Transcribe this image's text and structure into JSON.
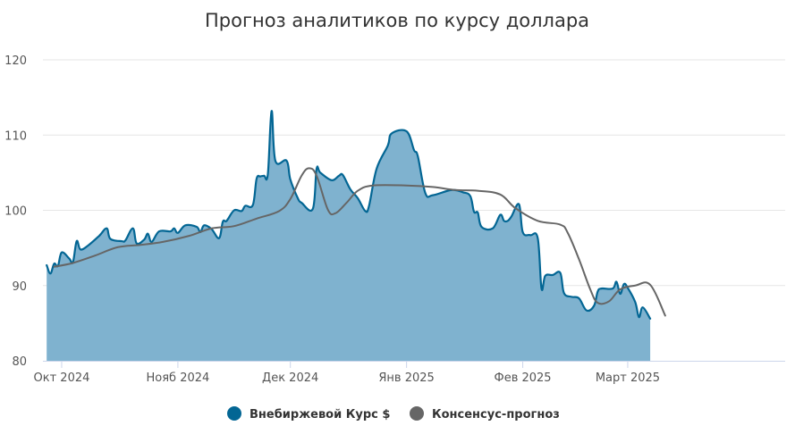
{
  "chart_data": {
    "type": "area",
    "title": "Прогноз аналитиков по курсу доллара",
    "xlabel": "",
    "ylabel": "",
    "x_range": [
      "2024-09-26",
      "2025-04-12"
    ],
    "ylim": [
      80,
      120
    ],
    "yticks": [
      80,
      90,
      100,
      110,
      120
    ],
    "xticks": [
      {
        "date": "2024-10-01",
        "label": "Окт 2024"
      },
      {
        "date": "2024-11-01",
        "label": "Нояб 2024"
      },
      {
        "date": "2024-12-01",
        "label": "Дек 2024"
      },
      {
        "date": "2025-01-01",
        "label": "Янв 2025"
      },
      {
        "date": "2025-02-01",
        "label": "Фев 2025"
      },
      {
        "date": "2025-03-01",
        "label": "Март 2025"
      }
    ],
    "grid": "horizontal",
    "legend_position": "bottom-center",
    "series": [
      {
        "name": "Внебиржевой Курс $",
        "kind": "area",
        "color": "#036694",
        "fill": "#7fb2cf",
        "points": [
          [
            "2024-09-27",
            92.7
          ],
          [
            "2024-09-28",
            91.6
          ],
          [
            "2024-09-29",
            92.9
          ],
          [
            "2024-09-30",
            92.6
          ],
          [
            "2024-10-01",
            94.4
          ],
          [
            "2024-10-03",
            93.6
          ],
          [
            "2024-10-04",
            93.1
          ],
          [
            "2024-10-05",
            95.9
          ],
          [
            "2024-10-06",
            94.8
          ],
          [
            "2024-10-08",
            95.3
          ],
          [
            "2024-10-11",
            96.6
          ],
          [
            "2024-10-13",
            97.6
          ],
          [
            "2024-10-14",
            96.2
          ],
          [
            "2024-10-17",
            95.9
          ],
          [
            "2024-10-18",
            96.0
          ],
          [
            "2024-10-20",
            97.6
          ],
          [
            "2024-10-21",
            95.6
          ],
          [
            "2024-10-23",
            96.1
          ],
          [
            "2024-10-24",
            96.9
          ],
          [
            "2024-10-25",
            95.8
          ],
          [
            "2024-10-27",
            97.2
          ],
          [
            "2024-10-30",
            97.2
          ],
          [
            "2024-10-31",
            97.6
          ],
          [
            "2024-11-01",
            97.0
          ],
          [
            "2024-11-03",
            98.0
          ],
          [
            "2024-11-06",
            97.8
          ],
          [
            "2024-11-07",
            97.1
          ],
          [
            "2024-11-08",
            98.0
          ],
          [
            "2024-11-10",
            97.5
          ],
          [
            "2024-11-12",
            96.3
          ],
          [
            "2024-11-13",
            98.5
          ],
          [
            "2024-11-14",
            98.6
          ],
          [
            "2024-11-16",
            100.0
          ],
          [
            "2024-11-18",
            99.9
          ],
          [
            "2024-11-19",
            100.6
          ],
          [
            "2024-11-21",
            100.7
          ],
          [
            "2024-11-22",
            104.2
          ],
          [
            "2024-11-23",
            104.5
          ],
          [
            "2024-11-24",
            104.6
          ],
          [
            "2024-11-25",
            104.8
          ],
          [
            "2024-11-26",
            113.2
          ],
          [
            "2024-11-27",
            106.6
          ],
          [
            "2024-11-30",
            106.6
          ],
          [
            "2024-12-01",
            104.1
          ],
          [
            "2024-12-03",
            101.6
          ],
          [
            "2024-12-04",
            101.0
          ],
          [
            "2024-12-07",
            100.2
          ],
          [
            "2024-12-08",
            105.5
          ],
          [
            "2024-12-09",
            105.0
          ],
          [
            "2024-12-12",
            104.0
          ],
          [
            "2024-12-14",
            104.6
          ],
          [
            "2024-12-15",
            104.7
          ],
          [
            "2024-12-17",
            102.8
          ],
          [
            "2024-12-19",
            101.6
          ],
          [
            "2024-12-21",
            99.9
          ],
          [
            "2024-12-22",
            100.6
          ],
          [
            "2024-12-24",
            105.5
          ],
          [
            "2024-12-27",
            108.6
          ],
          [
            "2024-12-28",
            110.2
          ],
          [
            "2025-01-01",
            110.5
          ],
          [
            "2025-01-03",
            108.0
          ],
          [
            "2025-01-04",
            107.2
          ],
          [
            "2025-01-06",
            102.3
          ],
          [
            "2025-01-08",
            102.0
          ],
          [
            "2025-01-13",
            102.7
          ],
          [
            "2025-01-16",
            102.4
          ],
          [
            "2025-01-18",
            101.9
          ],
          [
            "2025-01-19",
            99.8
          ],
          [
            "2025-01-20",
            99.7
          ],
          [
            "2025-01-21",
            97.8
          ],
          [
            "2025-01-24",
            97.6
          ],
          [
            "2025-01-26",
            99.4
          ],
          [
            "2025-01-27",
            98.6
          ],
          [
            "2025-01-28",
            98.6
          ],
          [
            "2025-01-29",
            99.2
          ],
          [
            "2025-01-31",
            100.8
          ],
          [
            "2025-02-01",
            97.1
          ],
          [
            "2025-02-03",
            96.7
          ],
          [
            "2025-02-05",
            96.3
          ],
          [
            "2025-02-06",
            89.6
          ],
          [
            "2025-02-07",
            91.3
          ],
          [
            "2025-02-09",
            91.4
          ],
          [
            "2025-02-11",
            91.7
          ],
          [
            "2025-02-12",
            89.0
          ],
          [
            "2025-02-14",
            88.5
          ],
          [
            "2025-02-16",
            88.3
          ],
          [
            "2025-02-18",
            86.7
          ],
          [
            "2025-02-20",
            87.3
          ],
          [
            "2025-02-21",
            89.2
          ],
          [
            "2025-02-22",
            89.6
          ],
          [
            "2025-02-25",
            89.6
          ],
          [
            "2025-02-26",
            90.5
          ],
          [
            "2025-02-27",
            88.9
          ],
          [
            "2025-02-28",
            90.2
          ],
          [
            "2025-03-01",
            89.7
          ],
          [
            "2025-03-03",
            87.8
          ],
          [
            "2025-03-04",
            85.8
          ],
          [
            "2025-03-05",
            87.1
          ],
          [
            "2025-03-07",
            85.6
          ]
        ]
      },
      {
        "name": "Консенсус-прогноз",
        "kind": "line",
        "color": "#666666",
        "points": [
          [
            "2024-09-29",
            92.5
          ],
          [
            "2024-10-04",
            93.0
          ],
          [
            "2024-10-10",
            94.0
          ],
          [
            "2024-10-16",
            95.1
          ],
          [
            "2024-10-22",
            95.4
          ],
          [
            "2024-10-28",
            95.8
          ],
          [
            "2024-11-04",
            96.6
          ],
          [
            "2024-11-10",
            97.6
          ],
          [
            "2024-11-16",
            97.9
          ],
          [
            "2024-11-22",
            98.9
          ],
          [
            "2024-11-28",
            99.9
          ],
          [
            "2024-12-01",
            101.5
          ],
          [
            "2024-12-04",
            104.6
          ],
          [
            "2024-12-06",
            105.6
          ],
          [
            "2024-12-08",
            104.6
          ],
          [
            "2024-12-11",
            100.1
          ],
          [
            "2024-12-13",
            99.6
          ],
          [
            "2024-12-16",
            101.0
          ],
          [
            "2024-12-19",
            102.6
          ],
          [
            "2024-12-23",
            103.3
          ],
          [
            "2025-01-01",
            103.3
          ],
          [
            "2025-01-08",
            103.1
          ],
          [
            "2025-01-14",
            102.7
          ],
          [
            "2025-01-20",
            102.6
          ],
          [
            "2025-01-26",
            102.1
          ],
          [
            "2025-01-30",
            100.3
          ],
          [
            "2025-02-05",
            98.6
          ],
          [
            "2025-02-11",
            98.1
          ],
          [
            "2025-02-13",
            97.0
          ],
          [
            "2025-02-16",
            93.5
          ],
          [
            "2025-02-19",
            89.5
          ],
          [
            "2025-02-21",
            87.7
          ],
          [
            "2025-02-24",
            87.9
          ],
          [
            "2025-02-27",
            89.5
          ],
          [
            "2025-03-03",
            90.0
          ],
          [
            "2025-03-07",
            90.1
          ],
          [
            "2025-03-11",
            86.0
          ]
        ]
      }
    ]
  }
}
